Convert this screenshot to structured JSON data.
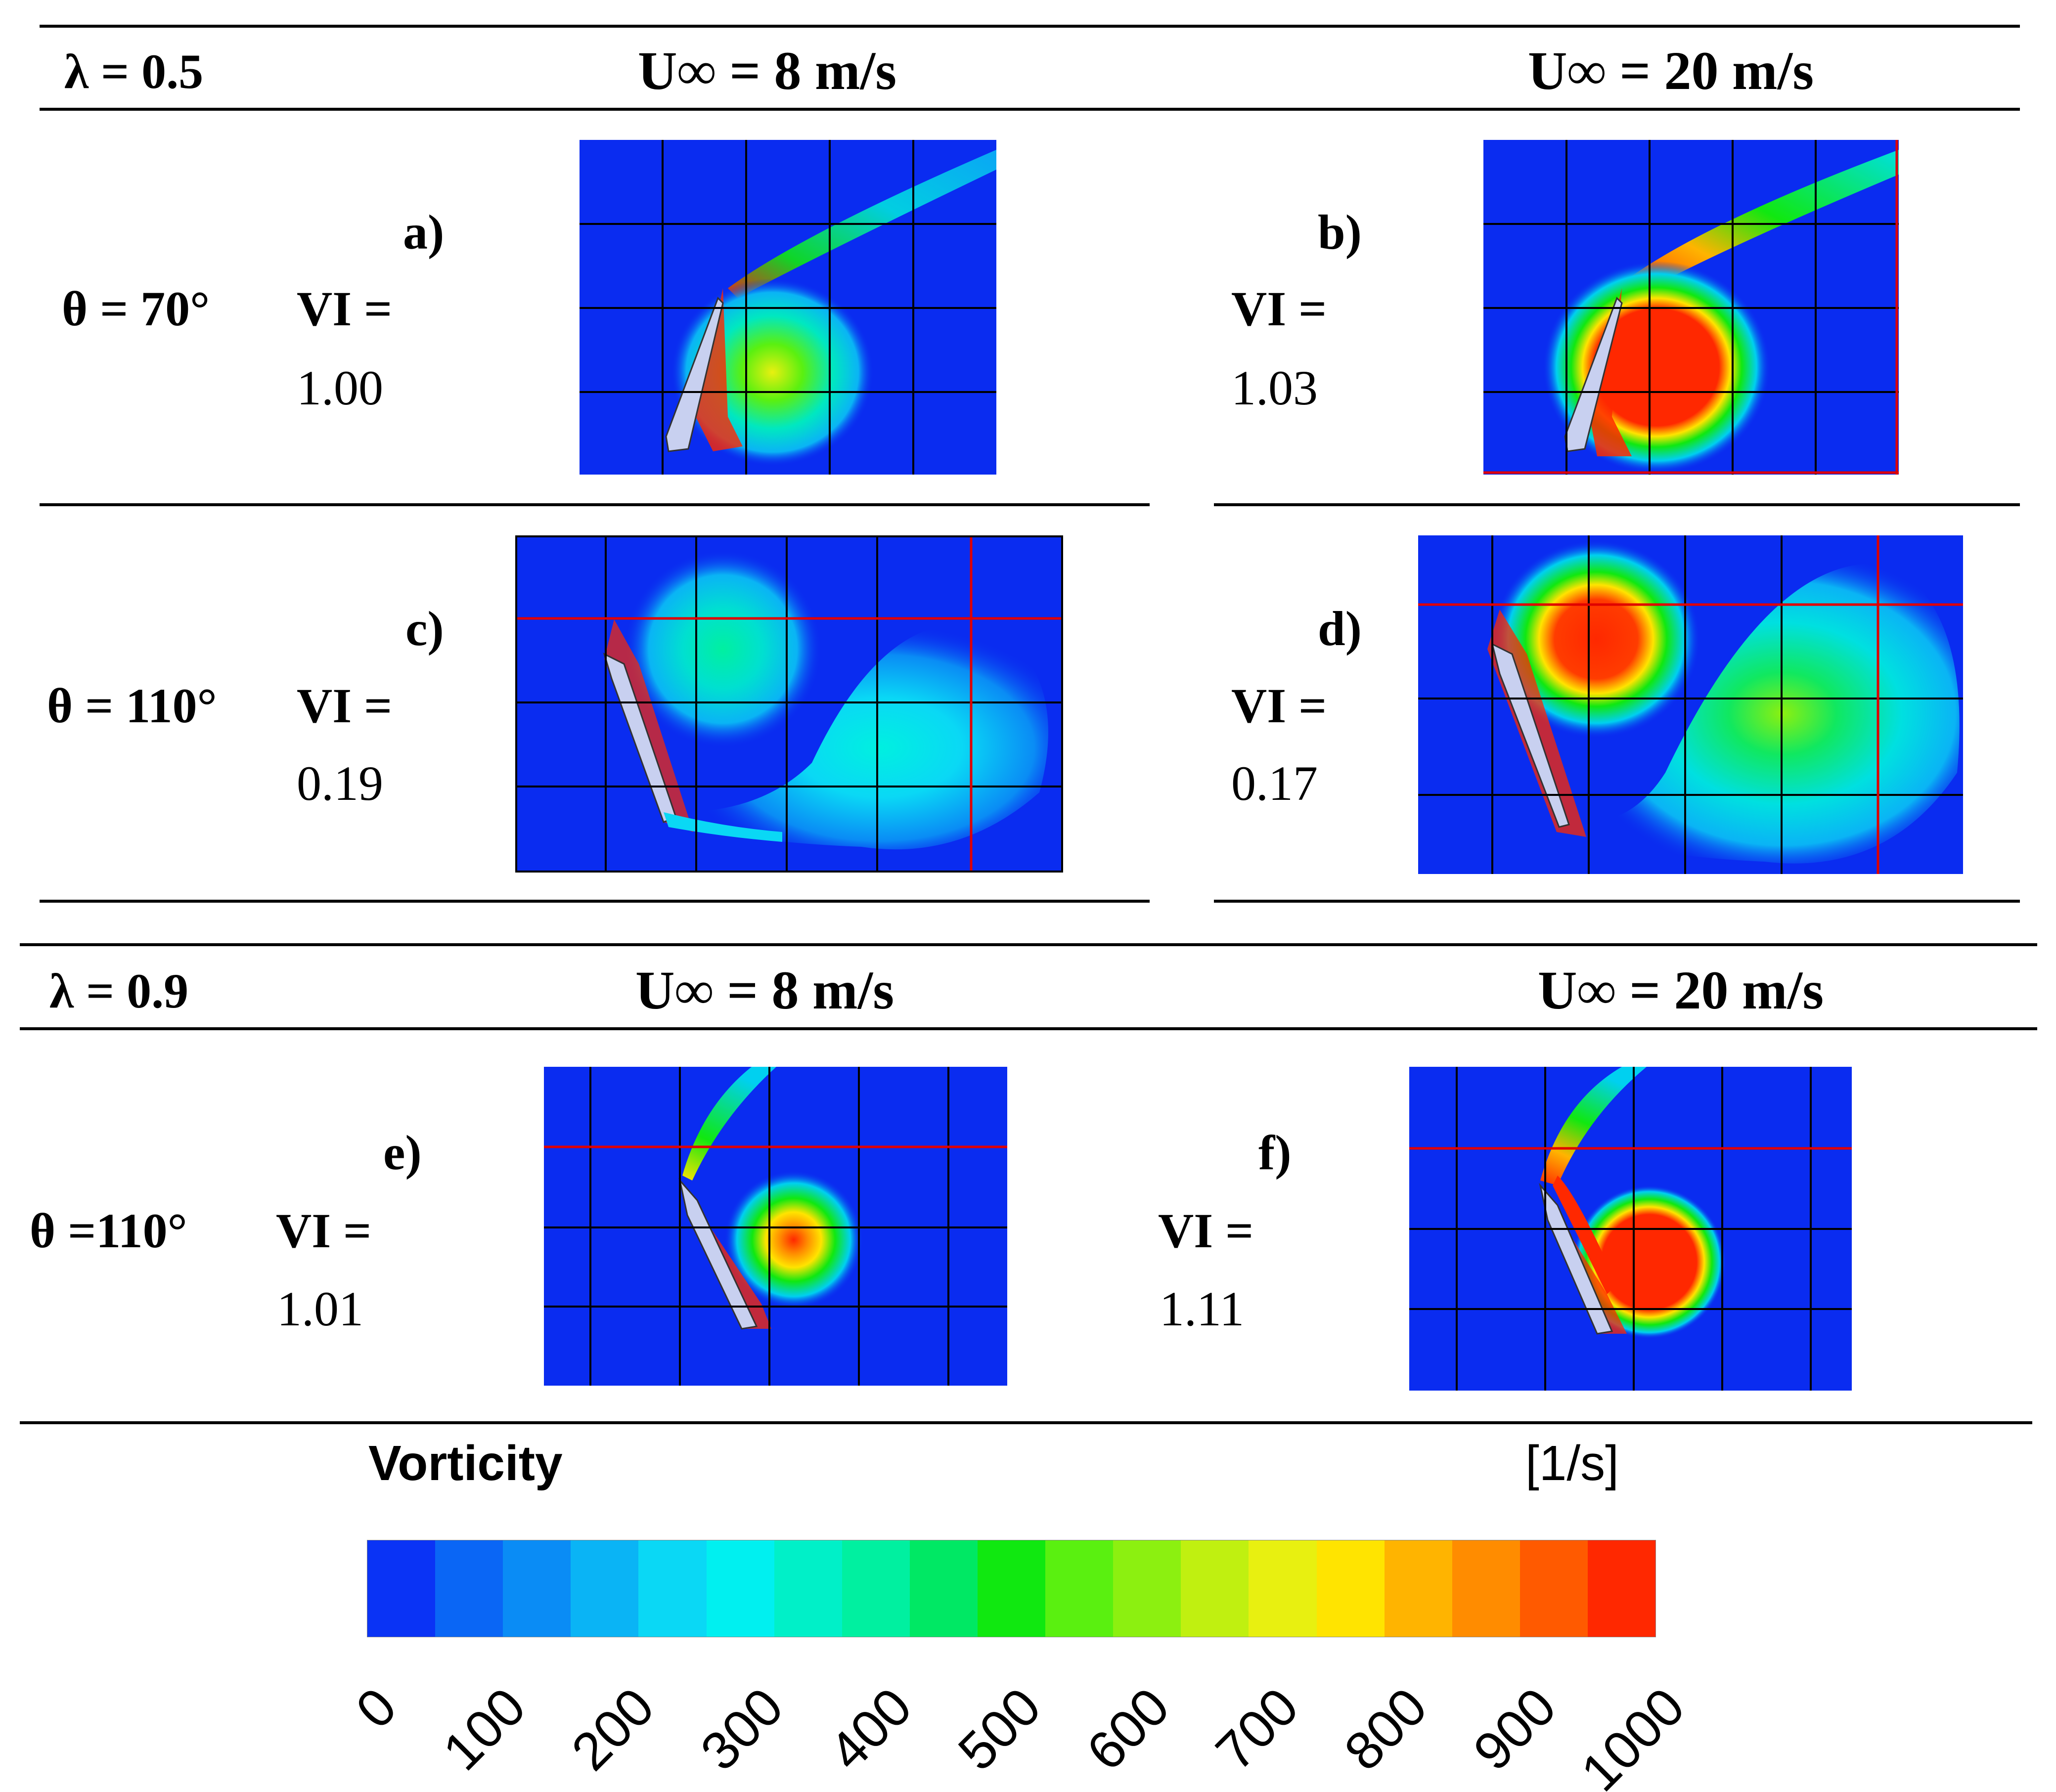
{
  "sections": [
    {
      "lambda_label": "λ = 0.5",
      "u_low_label": "U∞ = 8 m/s",
      "u_high_label": "U∞ = 20 m/s",
      "rows": [
        {
          "theta_label": "θ = 70°",
          "left": {
            "panel_label": "a)",
            "vi_label": "VI =",
            "vi_value": "1.00"
          },
          "right": {
            "panel_label": "b)",
            "vi_label": "VI =",
            "vi_value": "1.03"
          }
        },
        {
          "theta_label": "θ = 110°",
          "left": {
            "panel_label": "c)",
            "vi_label": "VI =",
            "vi_value": "0.19"
          },
          "right": {
            "panel_label": "d)",
            "vi_label": "VI =",
            "vi_value": "0.17"
          }
        }
      ]
    },
    {
      "lambda_label": "λ = 0.9",
      "u_low_label": "U∞ = 8 m/s",
      "u_high_label": "U∞ = 20 m/s",
      "rows": [
        {
          "theta_label": "θ =110°",
          "left": {
            "panel_label": "e)",
            "vi_label": "VI =",
            "vi_value": "1.01"
          },
          "right": {
            "panel_label": "f)",
            "vi_label": "VI =",
            "vi_value": "1.11"
          }
        }
      ]
    }
  ],
  "colorbar": {
    "title": "Vorticity",
    "unit": "[1/s]",
    "tick_labels": [
      "0",
      "100",
      "200",
      "300",
      "400",
      "500",
      "600",
      "700",
      "800",
      "900",
      "1000"
    ],
    "colors": [
      "#0a33f5",
      "#0a66f5",
      "#0a8cf5",
      "#0ab4f5",
      "#0ad8f5",
      "#00f0f0",
      "#00f0c8",
      "#00f0a0",
      "#00e864",
      "#10e810",
      "#5af010",
      "#8cf010",
      "#c0f010",
      "#e8f010",
      "#ffe400",
      "#ffb400",
      "#ff8c00",
      "#ff5a00",
      "#ff2800"
    ]
  },
  "colors": {
    "background": "#0a2cf0",
    "grid": "#000000",
    "grid_highlight": "#e00000",
    "airfoil": "#c8d0f0"
  }
}
